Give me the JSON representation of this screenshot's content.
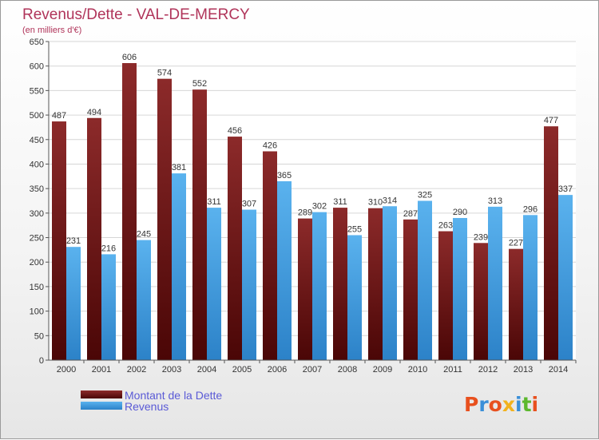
{
  "chart_data": {
    "type": "bar",
    "title": "Revenus/Dette - VAL-DE-MERCY",
    "subtitle": "(en milliers d'€)",
    "categories": [
      "2000",
      "2001",
      "2002",
      "2003",
      "2004",
      "2005",
      "2006",
      "2007",
      "2008",
      "2009",
      "2010",
      "2011",
      "2012",
      "2013",
      "2014"
    ],
    "series": [
      {
        "name": "Montant de la Dette",
        "values": [
          487,
          494,
          606,
          574,
          552,
          456,
          426,
          289,
          311,
          310,
          287,
          263,
          239,
          227,
          477
        ],
        "color": "#7a1c1c"
      },
      {
        "name": "Revenus",
        "values": [
          231,
          216,
          245,
          381,
          311,
          307,
          365,
          302,
          255,
          314,
          325,
          290,
          313,
          296,
          337
        ],
        "color": "#4aa3e0"
      }
    ],
    "ylim": [
      0,
      650
    ],
    "yticks": [
      0,
      50,
      100,
      150,
      200,
      250,
      300,
      350,
      400,
      450,
      500,
      550,
      600,
      650
    ],
    "grid": true,
    "legend_position": "bottom-left"
  },
  "branding": {
    "logo_text": "Proxiti",
    "logo_colors": [
      "#e8501e",
      "#3a8fd8",
      "#e8501e",
      "#f2b21e",
      "#3a8fd8",
      "#5cb82e",
      "#e8501e"
    ]
  }
}
